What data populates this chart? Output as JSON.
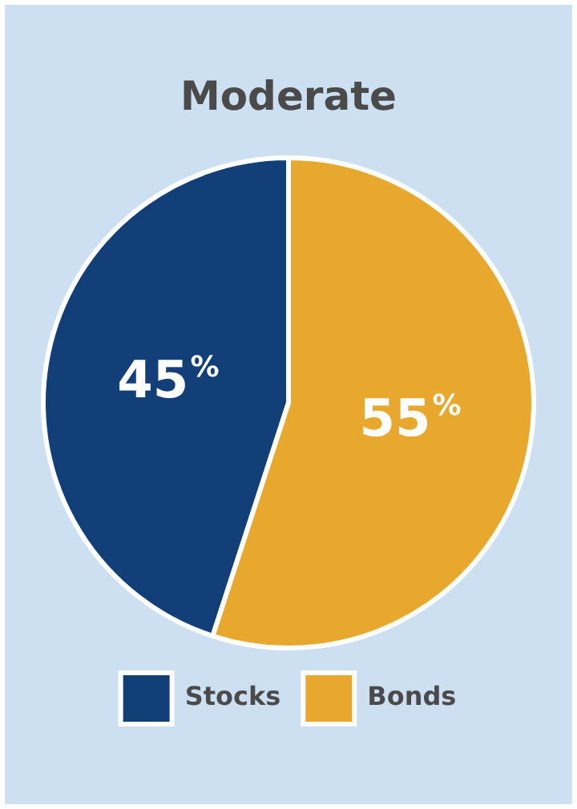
{
  "chart_data": {
    "type": "pie",
    "title": "Moderate",
    "categories": [
      "Stocks",
      "Bonds"
    ],
    "values": [
      45,
      55
    ],
    "colors": [
      "#123f77",
      "#e8a82d"
    ],
    "value_labels": [
      "45%",
      "55%"
    ],
    "legend": "bottom"
  }
}
